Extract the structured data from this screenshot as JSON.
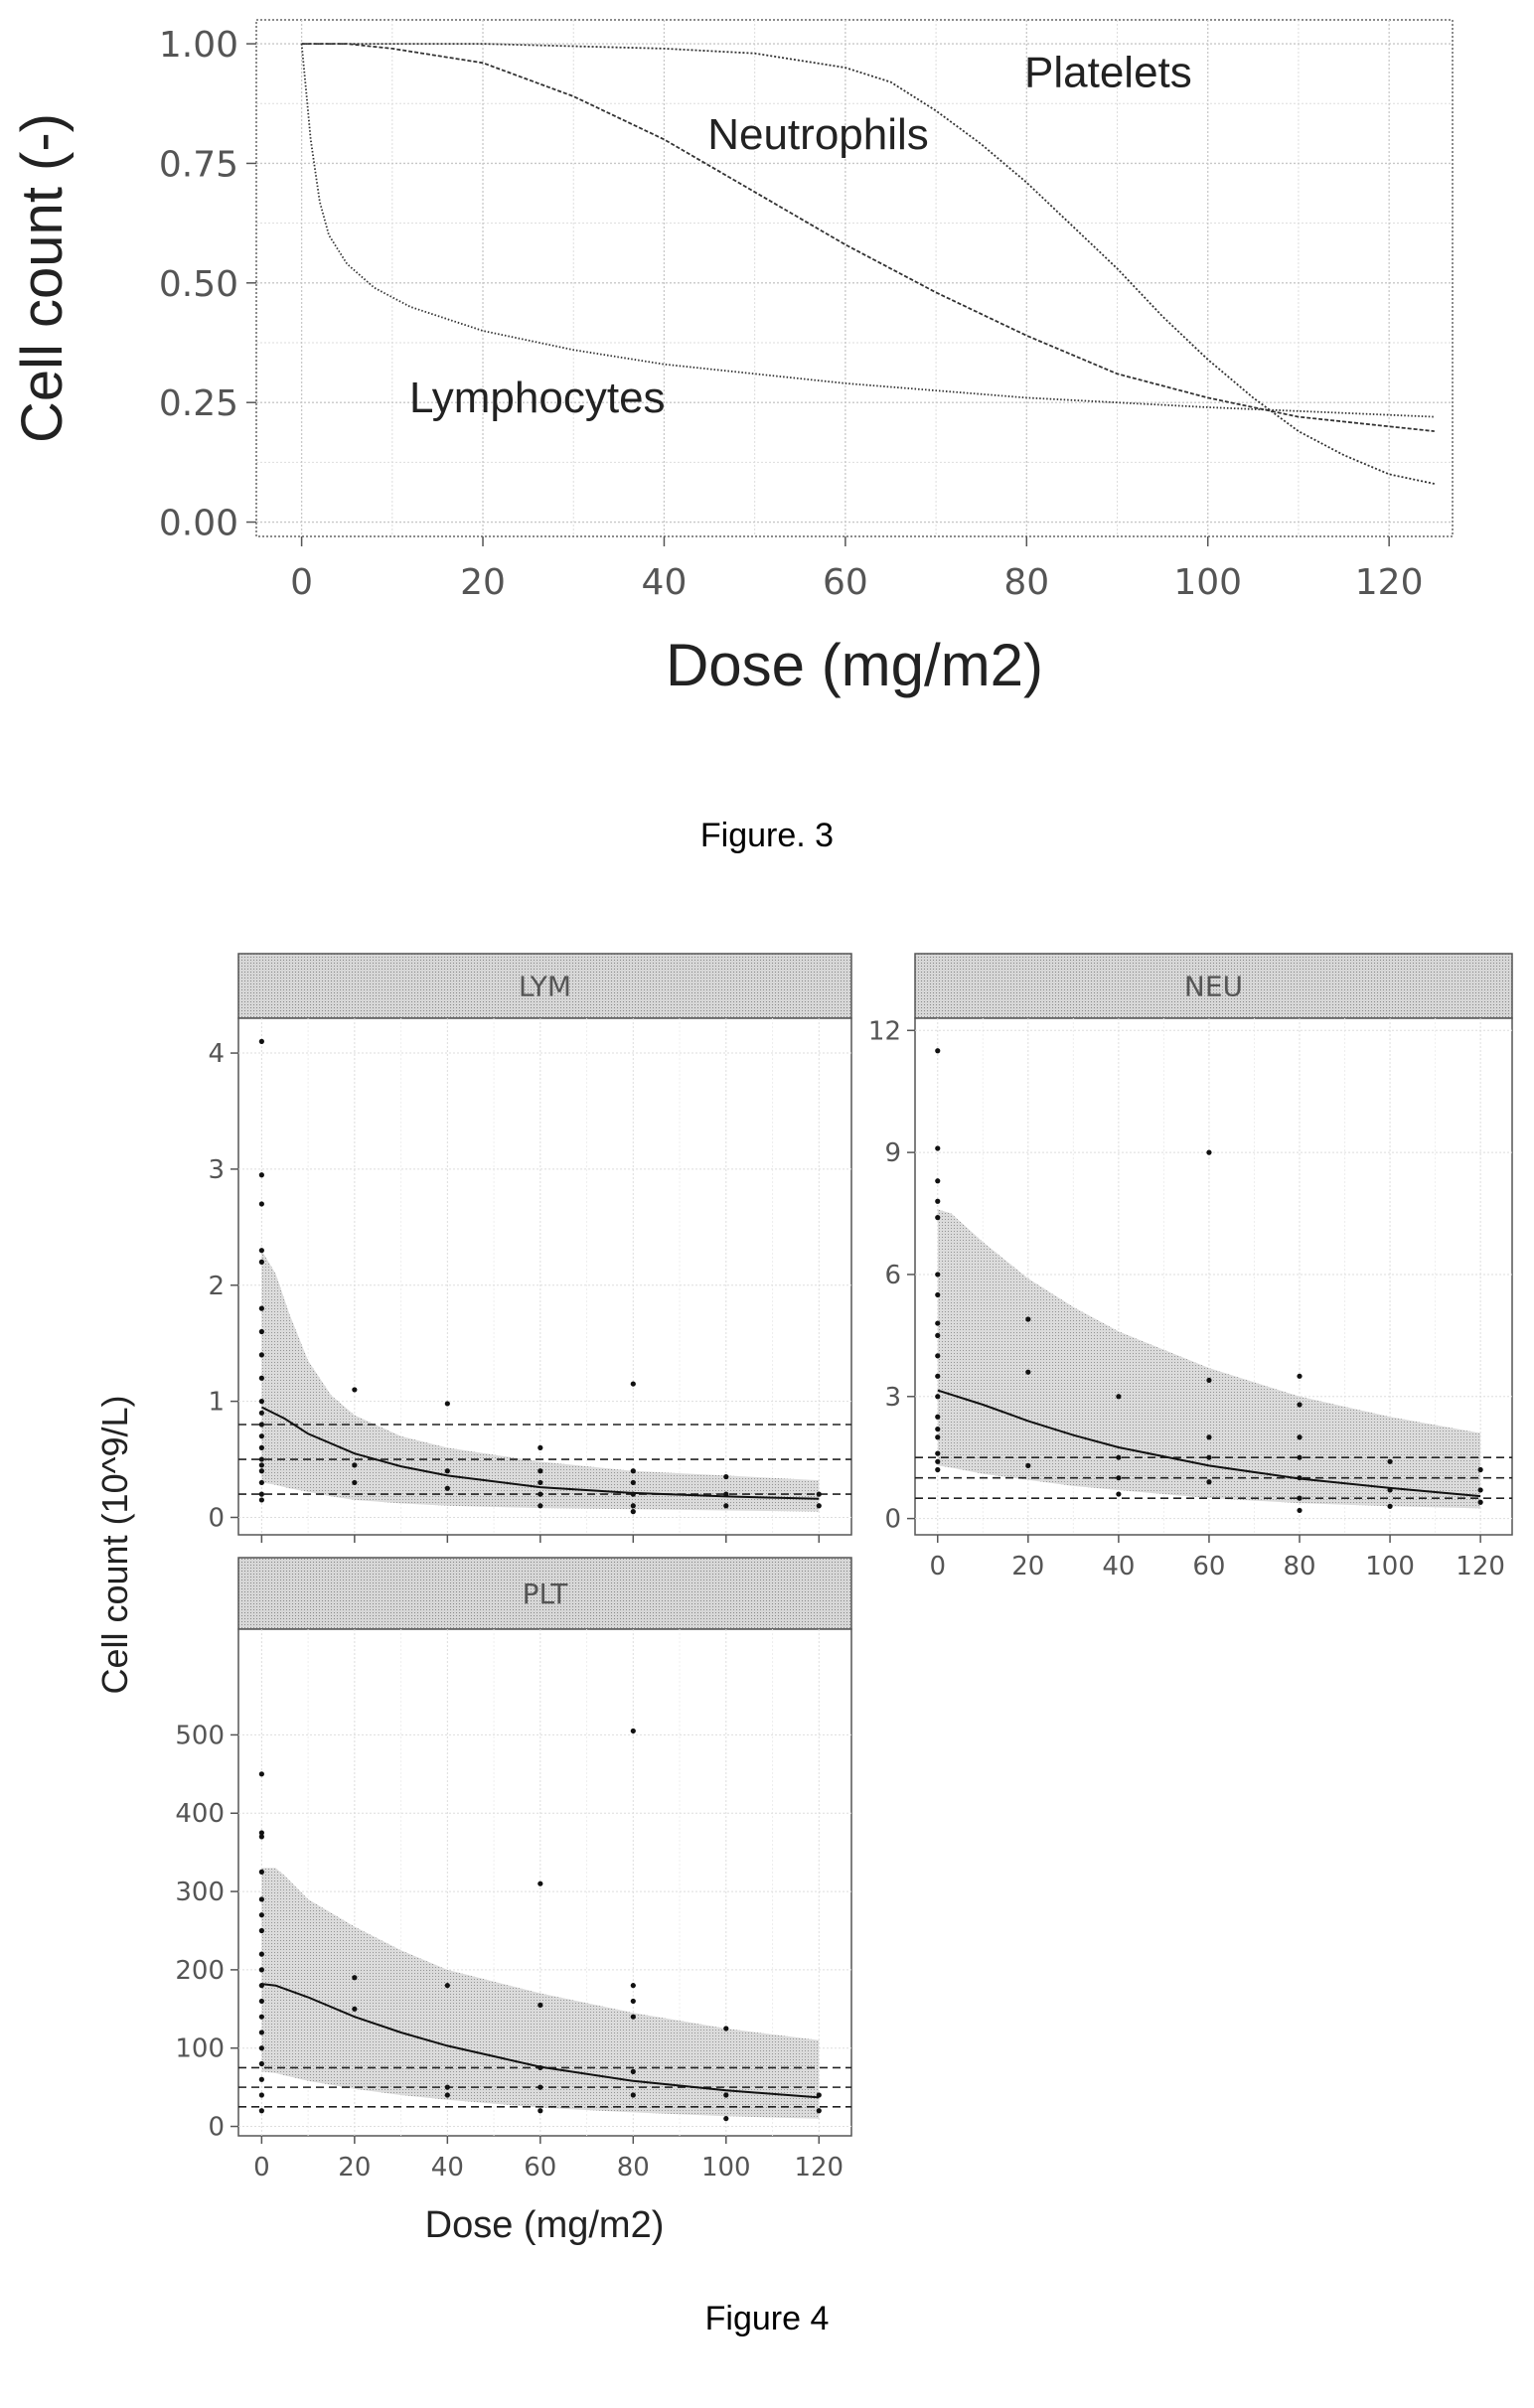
{
  "captions": {
    "fig3": "Figure. 3",
    "fig4": "Figure 4"
  },
  "chart_data": [
    {
      "type": "line",
      "xlabel": "Dose (mg/m2)",
      "ylabel": "Cell count (-)",
      "xlim": [
        -5,
        127
      ],
      "ylim": [
        -0.03,
        1.05
      ],
      "xticks": [
        0,
        20,
        40,
        60,
        80,
        100,
        120
      ],
      "yticks": [
        0.0,
        0.25,
        0.5,
        0.75,
        1.0
      ],
      "xtick_labels": [
        "0",
        "20",
        "40",
        "60",
        "80",
        "100",
        "120"
      ],
      "ytick_labels": [
        "0.00",
        "0.25",
        "0.50",
        "0.75",
        "1.00"
      ],
      "grid": true,
      "annotations": [
        {
          "text": "Platelets",
          "x": 89,
          "y": 0.91
        },
        {
          "text": "Neutrophils",
          "x": 57,
          "y": 0.78
        },
        {
          "text": "Lymphocytes",
          "x": 26,
          "y": 0.23
        }
      ],
      "series": [
        {
          "name": "Platelets",
          "x": [
            0,
            20,
            40,
            50,
            60,
            65,
            70,
            75,
            80,
            85,
            90,
            95,
            100,
            105,
            110,
            115,
            120,
            125
          ],
          "y": [
            1.0,
            1.0,
            0.99,
            0.98,
            0.95,
            0.92,
            0.86,
            0.79,
            0.71,
            0.62,
            0.53,
            0.43,
            0.34,
            0.26,
            0.19,
            0.14,
            0.1,
            0.08
          ]
        },
        {
          "name": "Neutrophils",
          "x": [
            0,
            5,
            10,
            20,
            30,
            40,
            50,
            60,
            70,
            80,
            90,
            100,
            110,
            120,
            125
          ],
          "y": [
            1.0,
            1.0,
            0.99,
            0.96,
            0.89,
            0.8,
            0.69,
            0.58,
            0.48,
            0.39,
            0.31,
            0.26,
            0.22,
            0.2,
            0.19
          ]
        },
        {
          "name": "Lymphocytes",
          "x": [
            0,
            0.5,
            1,
            2,
            3,
            5,
            8,
            12,
            20,
            30,
            40,
            60,
            80,
            100,
            125
          ],
          "y": [
            1.0,
            0.9,
            0.8,
            0.67,
            0.6,
            0.54,
            0.49,
            0.45,
            0.4,
            0.36,
            0.33,
            0.29,
            0.26,
            0.24,
            0.22
          ]
        }
      ]
    },
    {
      "type": "scatter",
      "panel": "LYM",
      "xlabel": "Dose (mg/m2)",
      "ylabel": "Cell count (10^9/L)",
      "xlim": [
        -5,
        127
      ],
      "ylim": [
        -0.15,
        4.3
      ],
      "xticks": [
        0,
        20,
        40,
        60,
        80,
        100,
        120
      ],
      "yticks": [
        0,
        1,
        2,
        3,
        4
      ],
      "ytick_labels": [
        "0",
        "1",
        "2",
        "3",
        "4"
      ],
      "hlines": [
        0.2,
        0.5,
        0.8
      ],
      "x": [
        0,
        0,
        0,
        0,
        0,
        0,
        0,
        0,
        0,
        0,
        0,
        0,
        0,
        0,
        0,
        0,
        0,
        0,
        0,
        0,
        20,
        20,
        20,
        40,
        40,
        40,
        60,
        60,
        60,
        60,
        60,
        80,
        80,
        80,
        80,
        80,
        80,
        100,
        100,
        100,
        120,
        120
      ],
      "y": [
        4.1,
        2.95,
        2.7,
        2.3,
        2.2,
        1.8,
        1.6,
        1.4,
        1.2,
        1.0,
        0.9,
        0.8,
        0.7,
        0.6,
        0.5,
        0.45,
        0.4,
        0.3,
        0.2,
        0.15,
        1.1,
        0.45,
        0.3,
        0.98,
        0.4,
        0.25,
        0.6,
        0.4,
        0.3,
        0.2,
        0.1,
        1.15,
        0.4,
        0.3,
        0.2,
        0.1,
        0.05,
        0.35,
        0.2,
        0.1,
        0.2,
        0.1
      ],
      "median": {
        "x": [
          0,
          5,
          10,
          20,
          30,
          40,
          60,
          80,
          100,
          120
        ],
        "y": [
          0.95,
          0.85,
          0.72,
          0.55,
          0.44,
          0.36,
          0.26,
          0.21,
          0.18,
          0.16
        ]
      },
      "band": {
        "x": [
          0,
          3,
          6,
          10,
          15,
          20,
          30,
          40,
          60,
          80,
          100,
          120
        ],
        "lower": [
          0.3,
          0.28,
          0.25,
          0.22,
          0.18,
          0.15,
          0.12,
          0.1,
          0.08,
          0.07,
          0.06,
          0.05
        ],
        "upper": [
          2.3,
          2.1,
          1.75,
          1.35,
          1.05,
          0.88,
          0.7,
          0.6,
          0.48,
          0.4,
          0.36,
          0.32
        ]
      }
    },
    {
      "type": "scatter",
      "panel": "NEU",
      "xlabel": "Dose (mg/m2)",
      "ylabel": "Cell count (10^9/L)",
      "xlim": [
        -5,
        127
      ],
      "ylim": [
        -0.4,
        12.3
      ],
      "xticks": [
        0,
        20,
        40,
        60,
        80,
        100,
        120
      ],
      "xtick_labels": [
        "0",
        "20",
        "40",
        "60",
        "80",
        "100",
        "120"
      ],
      "yticks": [
        0,
        3,
        6,
        9,
        12
      ],
      "ytick_labels": [
        "0",
        "3",
        "6",
        "9",
        "12"
      ],
      "hlines": [
        0.5,
        1.0,
        1.5
      ],
      "x": [
        0,
        0,
        0,
        0,
        0,
        0,
        0,
        0,
        0,
        0,
        0,
        0,
        0,
        0,
        0,
        0,
        0,
        0,
        20,
        20,
        20,
        40,
        40,
        40,
        40,
        60,
        60,
        60,
        60,
        60,
        80,
        80,
        80,
        80,
        80,
        80,
        80,
        100,
        100,
        100,
        120,
        120,
        120
      ],
      "y": [
        11.5,
        9.1,
        8.3,
        7.8,
        7.4,
        6.0,
        5.5,
        4.8,
        4.5,
        4.0,
        3.5,
        3.0,
        2.5,
        2.2,
        2.0,
        1.6,
        1.4,
        1.2,
        4.9,
        3.6,
        1.3,
        3.0,
        1.5,
        1.0,
        0.6,
        9.0,
        3.4,
        2.0,
        1.5,
        0.9,
        3.5,
        2.8,
        2.0,
        1.5,
        1.0,
        0.5,
        0.2,
        1.4,
        0.7,
        0.3,
        1.2,
        0.7,
        0.4
      ],
      "median": {
        "x": [
          0,
          10,
          20,
          30,
          40,
          60,
          80,
          100,
          120
        ],
        "y": [
          3.15,
          2.8,
          2.4,
          2.05,
          1.75,
          1.3,
          0.98,
          0.75,
          0.55
        ]
      },
      "band": {
        "x": [
          0,
          3,
          10,
          20,
          30,
          40,
          60,
          80,
          100,
          120
        ],
        "lower": [
          1.3,
          1.25,
          1.1,
          0.95,
          0.8,
          0.7,
          0.5,
          0.38,
          0.3,
          0.25
        ],
        "upper": [
          7.6,
          7.5,
          6.8,
          5.9,
          5.2,
          4.6,
          3.7,
          3.0,
          2.5,
          2.1
        ]
      }
    },
    {
      "type": "scatter",
      "panel": "PLT",
      "xlabel": "Dose (mg/m2)",
      "ylabel": "Cell count (10^9/L)",
      "xlim": [
        -5,
        127
      ],
      "ylim": [
        -12,
        635
      ],
      "xticks": [
        0,
        20,
        40,
        60,
        80,
        100,
        120
      ],
      "xtick_labels": [
        "0",
        "20",
        "40",
        "60",
        "80",
        "100",
        "120"
      ],
      "yticks": [
        0,
        100,
        200,
        300,
        400,
        500
      ],
      "ytick_labels": [
        "0",
        "100",
        "200",
        "300",
        "400",
        "500"
      ],
      "hlines": [
        25,
        50,
        75
      ],
      "x": [
        0,
        0,
        0,
        0,
        0,
        0,
        0,
        0,
        0,
        0,
        0,
        0,
        0,
        0,
        0,
        0,
        0,
        0,
        20,
        20,
        40,
        40,
        40,
        60,
        60,
        60,
        60,
        60,
        80,
        80,
        80,
        80,
        80,
        80,
        100,
        100,
        100,
        120,
        120
      ],
      "y": [
        450,
        375,
        370,
        325,
        290,
        270,
        250,
        220,
        200,
        180,
        160,
        140,
        120,
        100,
        80,
        60,
        40,
        20,
        190,
        150,
        180,
        50,
        40,
        310,
        155,
        75,
        50,
        20,
        505,
        180,
        160,
        140,
        70,
        40,
        125,
        40,
        10,
        40,
        20
      ],
      "median": {
        "x": [
          0,
          3,
          10,
          20,
          30,
          40,
          60,
          80,
          100,
          120
        ],
        "y": [
          182,
          180,
          165,
          140,
          120,
          103,
          76,
          58,
          46,
          37
        ]
      },
      "band": {
        "x": [
          0,
          3,
          5,
          10,
          20,
          30,
          40,
          60,
          80,
          100,
          120
        ],
        "lower": [
          70,
          68,
          65,
          58,
          48,
          40,
          34,
          24,
          18,
          13,
          10
        ],
        "upper": [
          330,
          330,
          320,
          290,
          255,
          225,
          200,
          170,
          145,
          125,
          110
        ]
      }
    }
  ]
}
